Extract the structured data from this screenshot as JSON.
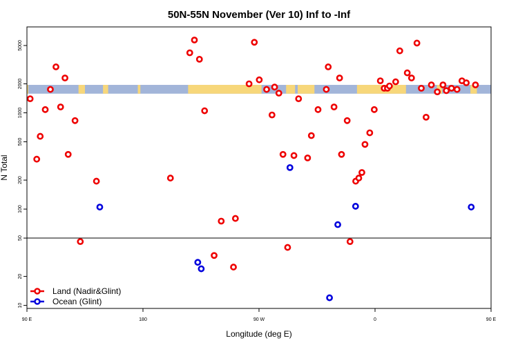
{
  "chart_data": {
    "type": "scatter",
    "title": "50N-55N November (Ver 10)   Inf to -Inf",
    "xlabel": "Longitude (deg E)",
    "ylabel": "N Total",
    "x_scale": "linear",
    "y_scale": "log",
    "xlim": [
      90,
      450
    ],
    "ylim": [
      9.3,
      7800
    ],
    "x_ticks": [
      {
        "value": 90,
        "label": "90 E"
      },
      {
        "value": 180,
        "label": "180"
      },
      {
        "value": 270,
        "label": "90 W"
      },
      {
        "value": 360,
        "label": "0"
      },
      {
        "value": 450,
        "label": "90 E"
      }
    ],
    "y_ticks": [
      {
        "value": 10,
        "label": "10"
      },
      {
        "value": 20,
        "label": "20"
      },
      {
        "value": 50,
        "label": "50"
      },
      {
        "value": 100,
        "label": "100"
      },
      {
        "value": 200,
        "label": "200"
      },
      {
        "value": 500,
        "label": "500"
      },
      {
        "value": 1000,
        "label": "1000"
      },
      {
        "value": 2000,
        "label": "2000"
      },
      {
        "value": 5000,
        "label": "5000"
      }
    ],
    "reference_line": 50,
    "surface_strip": {
      "y_range": [
        1580,
        1950
      ],
      "ocean_color": "#a2b5d9",
      "land_color": "#f7d77a",
      "land_segments": [
        [
          90,
          91
        ],
        [
          130,
          135
        ],
        [
          149,
          153
        ],
        [
          176,
          178
        ],
        [
          215,
          272
        ],
        [
          291,
          298
        ],
        [
          300,
          313
        ],
        [
          346,
          360
        ],
        [
          360,
          384
        ],
        [
          408,
          412
        ],
        [
          434,
          439
        ]
      ]
    },
    "series": [
      {
        "name": "Land (Nadir&Glint)",
        "color": "#ee0000",
        "x": [
          92.5,
          97.6,
          100.3,
          104.2,
          108.2,
          112.5,
          116.1,
          119.5,
          122.0,
          127.3,
          131.4,
          143.9,
          201.3,
          216.3,
          219.9,
          223.8,
          227.8,
          235.2,
          240.7,
          250.2,
          251.7,
          262.3,
          266.4,
          270.2,
          275.9,
          280.1,
          282.1,
          285.4,
          288.6,
          292.2,
          297.1,
          300.7,
          307.7,
          310.6,
          315.8,
          322.2,
          323.7,
          328.2,
          332.5,
          334.0,
          338.4,
          340.6,
          345.0,
          347.4,
          349.8,
          352.2,
          355.9,
          359.4,
          364.1,
          367.1,
          369.6,
          371.2,
          376.0,
          379.2,
          385.0,
          388.3,
          392.5,
          395.9,
          399.6,
          403.7,
          408.3,
          412.7,
          415.3,
          419.3,
          423.6,
          427.4,
          430.8,
          437.9
        ],
        "y": [
          1400,
          330,
          570,
          1080,
          1750,
          3000,
          1150,
          2300,
          370,
          830,
          46,
          195,
          210,
          4200,
          5700,
          3600,
          1050,
          33,
          75,
          25,
          80,
          2000,
          5400,
          2200,
          1750,
          950,
          1850,
          1600,
          370,
          40,
          360,
          1400,
          340,
          580,
          1080,
          1750,
          3000,
          1150,
          2300,
          370,
          830,
          46,
          195,
          210,
          240,
          470,
          620,
          1080,
          2150,
          1800,
          1800,
          1900,
          2100,
          4400,
          2600,
          2300,
          5300,
          1800,
          900,
          1950,
          1650,
          1950,
          1700,
          1800,
          1750,
          2150,
          2050,
          1950
        ],
        "note": "points approximated from the plot"
      },
      {
        "name": "Ocean (Glint)",
        "color": "#0000dd",
        "x": [
          146.5,
          222.5,
          225.2,
          324.7,
          331.1,
          294.0,
          344.9,
          434.6
        ],
        "y": [
          105,
          28,
          24,
          12,
          69,
          270,
          107,
          105
        ]
      }
    ],
    "legend_position": "bottom-left"
  }
}
